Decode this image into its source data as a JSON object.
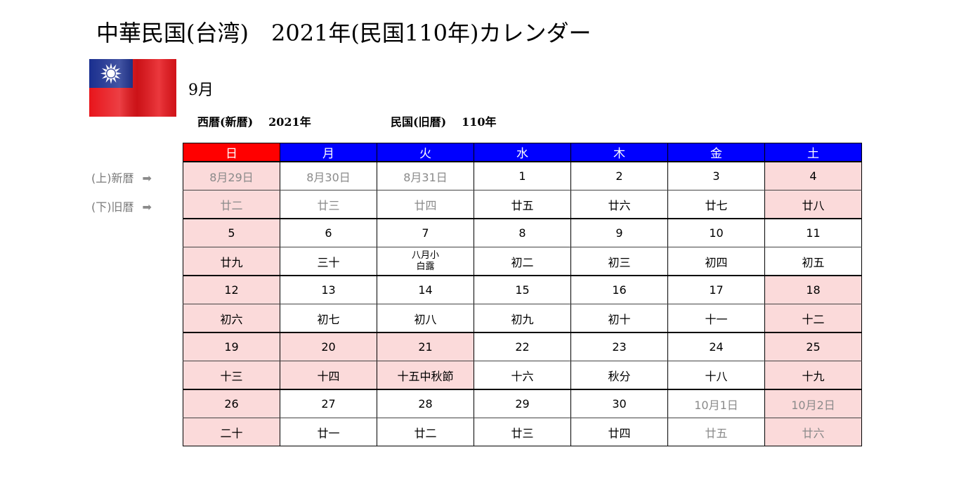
{
  "title": "中華民国(台湾)　2021年(民国110年)カレンダー",
  "month": "9月",
  "year_line": {
    "western_label": "西暦(新暦)",
    "western_year": "2021年",
    "roc_label": "民国(旧暦)",
    "roc_year": "110年"
  },
  "side_labels": {
    "top": "(上)新暦",
    "bottom": "(下)旧暦",
    "arrow": "➡"
  },
  "weekdays": [
    "日",
    "月",
    "火",
    "水",
    "木",
    "金",
    "土"
  ],
  "weeks": [
    {
      "dates": [
        "8月29日",
        "8月30日",
        "8月31日",
        "1",
        "2",
        "3",
        "4"
      ],
      "lunar": [
        "廿二",
        "廿三",
        "廿四",
        "廿五",
        "廿六",
        "廿七",
        "廿八"
      ]
    },
    {
      "dates": [
        "5",
        "6",
        "7",
        "8",
        "9",
        "10",
        "11"
      ],
      "lunar": [
        "廿九",
        "三十",
        "八月小 白露",
        "初二",
        "初三",
        "初四",
        "初五"
      ],
      "lunar_split": {
        "line1": "八月小",
        "line2": "白露"
      }
    },
    {
      "dates": [
        "12",
        "13",
        "14",
        "15",
        "16",
        "17",
        "18"
      ],
      "lunar": [
        "初六",
        "初七",
        "初八",
        "初九",
        "初十",
        "十一",
        "十二"
      ]
    },
    {
      "dates": [
        "19",
        "20",
        "21",
        "22",
        "23",
        "24",
        "25"
      ],
      "lunar": [
        "十三",
        "十四",
        "十五中秋節",
        "十六",
        "秋分",
        "十八",
        "十九"
      ]
    },
    {
      "dates": [
        "26",
        "27",
        "28",
        "29",
        "30",
        "10月1日",
        "10月2日"
      ],
      "lunar": [
        "二十",
        "廿一",
        "廿二",
        "廿三",
        "廿四",
        "廿五",
        "廿六"
      ]
    }
  ],
  "colors": {
    "header_weekday": "#0000ff",
    "header_sunday": "#ff0000",
    "holiday_fill": "#fbdada",
    "other_month_text": "#8a8a8a"
  },
  "flag_icon": "taiwan-flag"
}
